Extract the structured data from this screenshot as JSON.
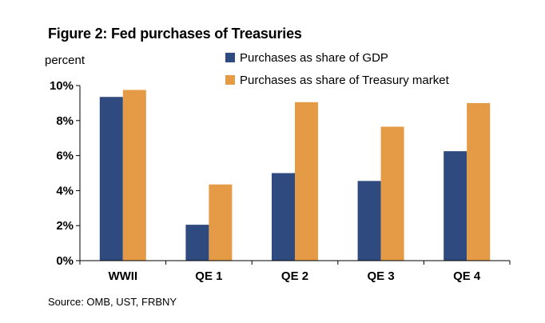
{
  "chart_data": {
    "type": "bar",
    "title": "Figure 2: Fed purchases of Treasuries",
    "ylabel": "percent",
    "xlabel": "",
    "categories": [
      "WWII",
      "QE 1",
      "QE 2",
      "QE 3",
      "QE 4"
    ],
    "series": [
      {
        "name": "Purchases as share of GDP",
        "color": "#2f4a7f",
        "values": [
          9.35,
          2.05,
          5.0,
          4.55,
          6.25
        ]
      },
      {
        "name": "Purchases as share of Treasury market",
        "color": "#e59a45",
        "values": [
          9.75,
          4.35,
          9.05,
          7.65,
          9.0
        ]
      }
    ],
    "ylim": [
      0,
      10
    ],
    "yticks": [
      0,
      2,
      4,
      6,
      8,
      10
    ],
    "ytick_labels": [
      "0%",
      "2%",
      "4%",
      "6%",
      "8%",
      "10%"
    ],
    "grid": false,
    "legend_position": "top-right"
  },
  "source_text": "Source: OMB, UST, FRBNY"
}
